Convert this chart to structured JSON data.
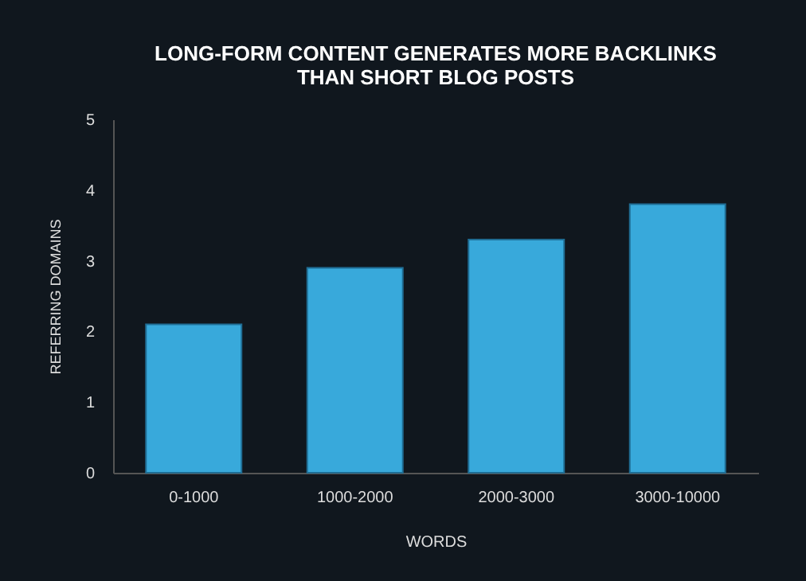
{
  "chart_data": {
    "type": "bar",
    "title": "LONG-FORM CONTENT GENERATES MORE BACKLINKS\nTHAN SHORT BLOG POSTS",
    "xlabel": "WORDS",
    "ylabel": "REFERRING DOMAINS",
    "categories": [
      "0-1000",
      "1000-2000",
      "2000-3000",
      "3000-10000"
    ],
    "values": [
      2.1,
      2.9,
      3.3,
      3.8
    ],
    "color": "#38a9db",
    "ylim": [
      0,
      5
    ],
    "yticks": [
      0,
      1,
      2,
      3,
      4,
      5
    ],
    "grid": false
  }
}
